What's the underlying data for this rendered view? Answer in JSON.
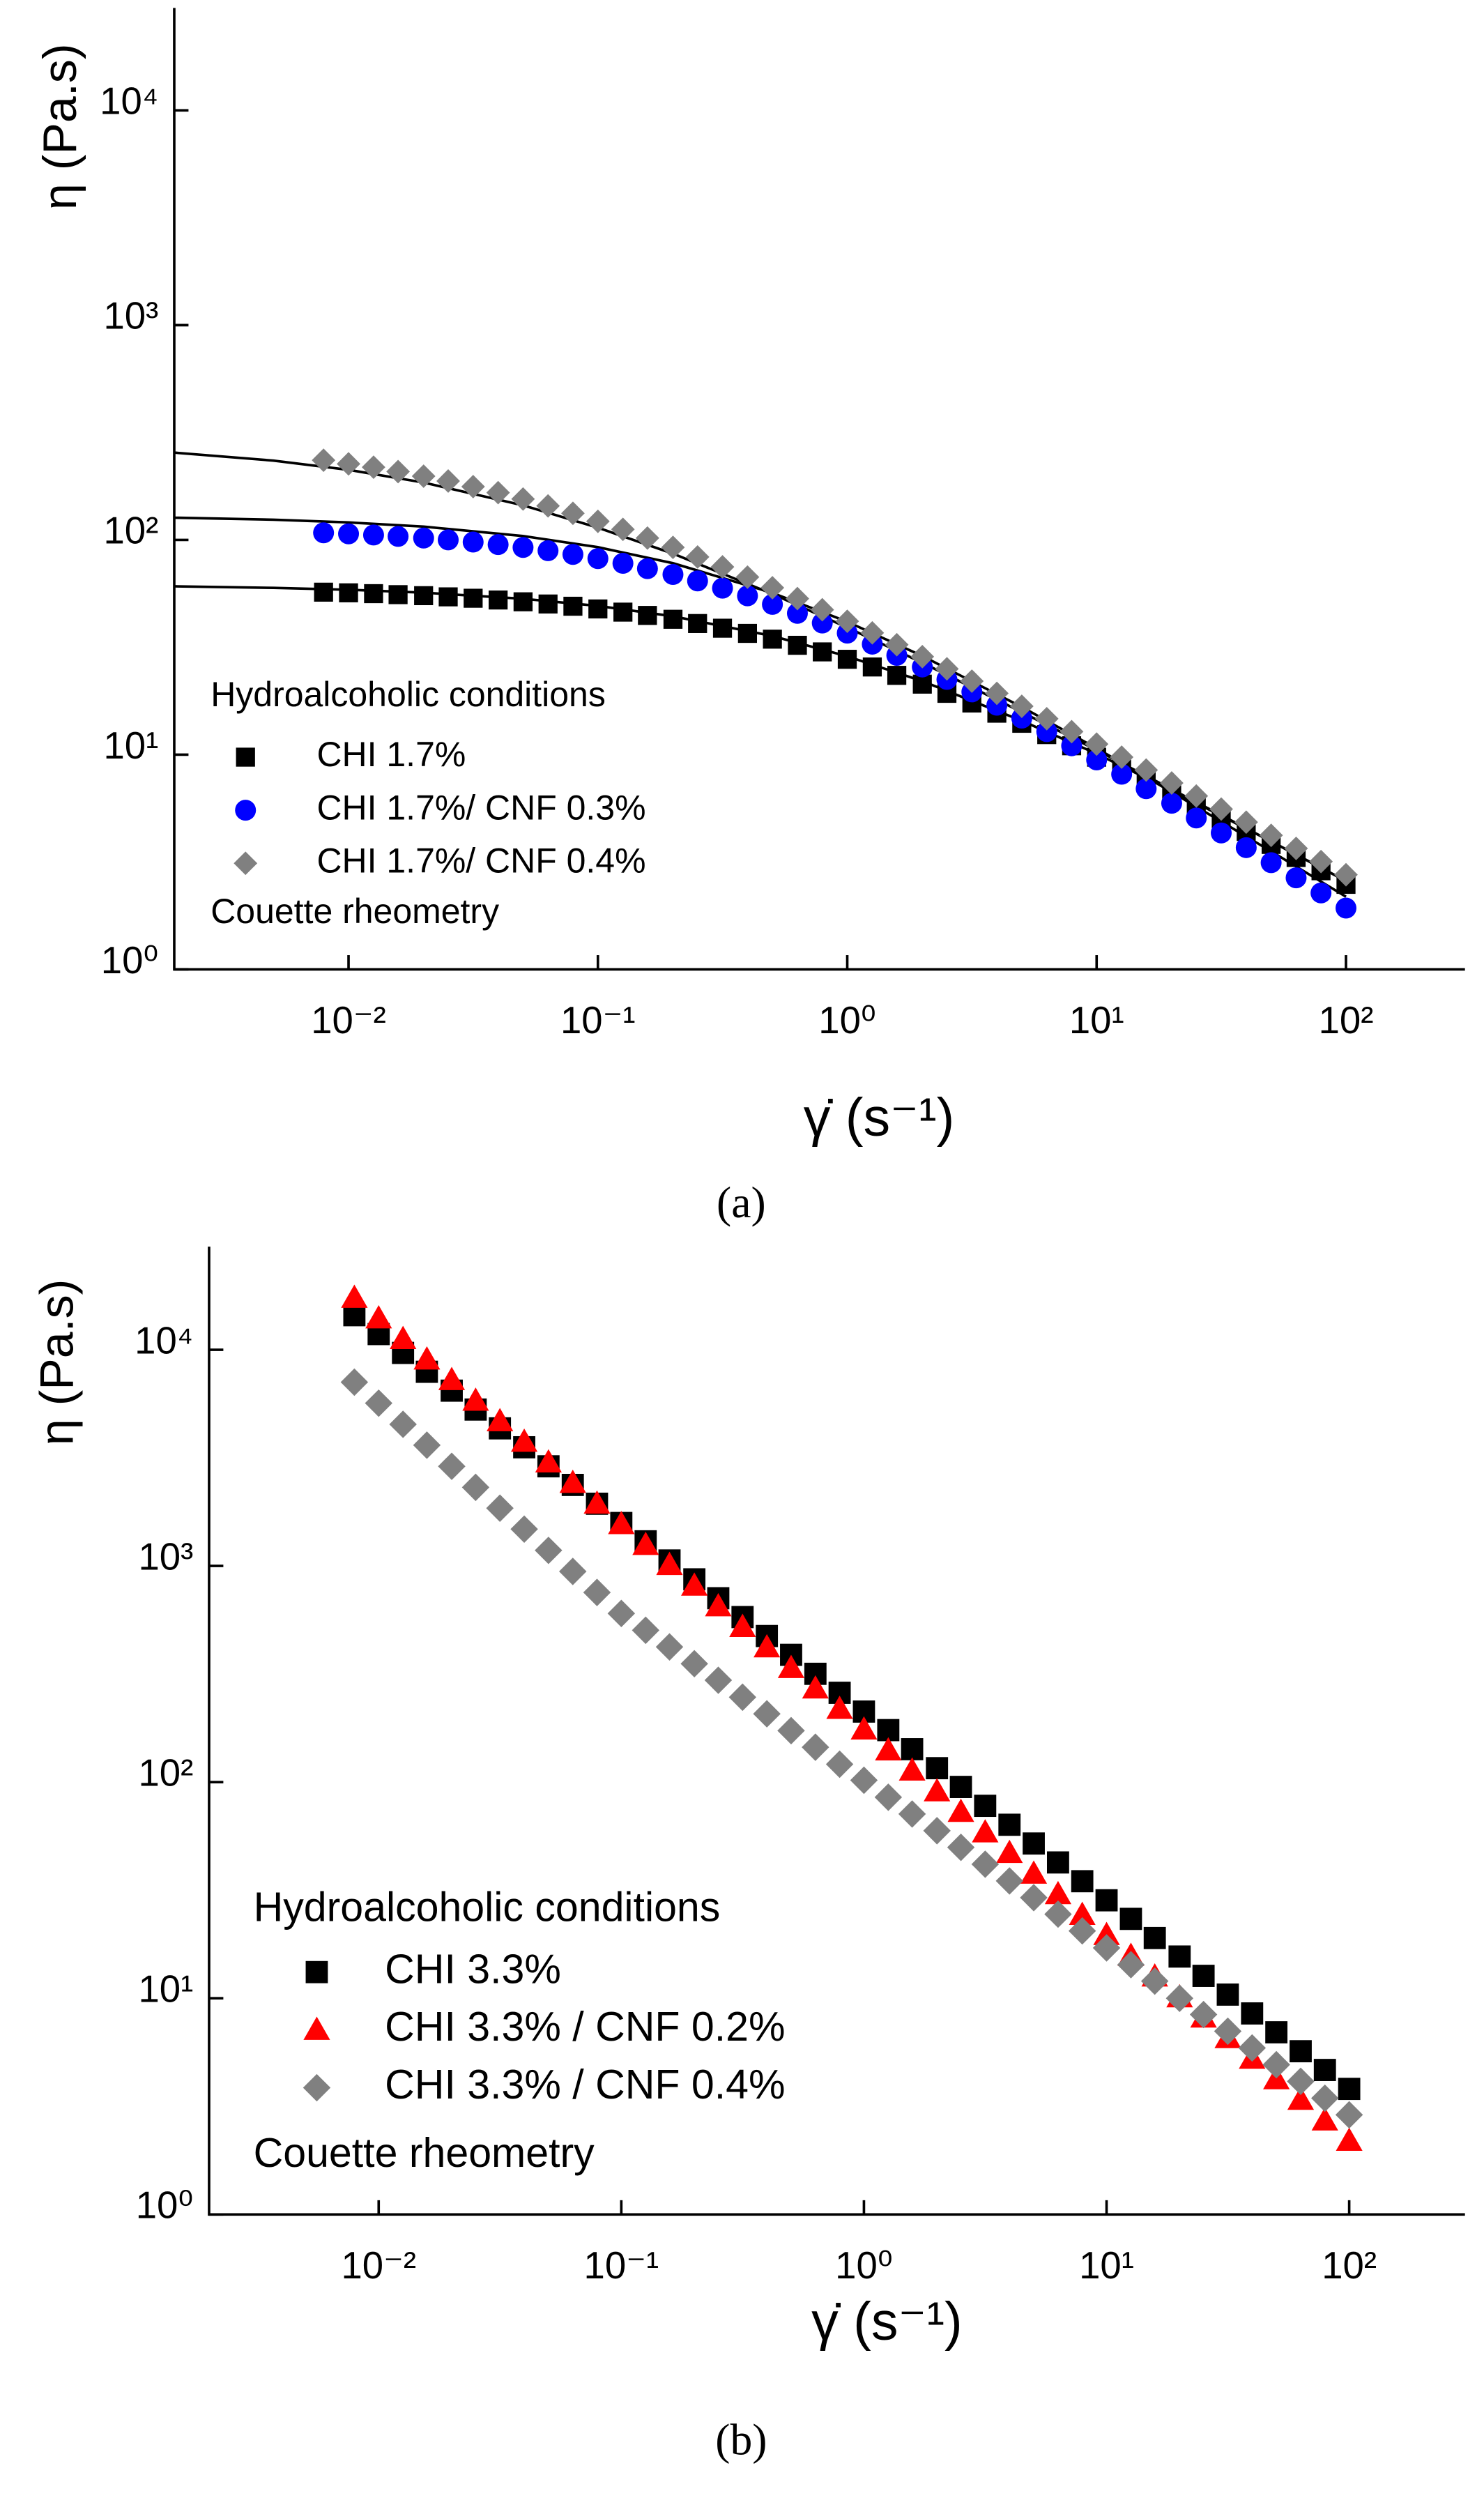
{
  "chart_data": [
    {
      "type": "scatter",
      "caption": "(a)",
      "ylabel": "η (Pa.s)",
      "xlabel": "γ̇ (s⁻¹)",
      "log_x": true,
      "log_y": true,
      "legend": "lower left",
      "legend_title": "Hydroalcoholic conditions",
      "note": "Couette rheometry",
      "xlim": [
        0.002,
        300
      ],
      "ylim": [
        1,
        30000
      ],
      "xticks": [
        {
          "value": 0.01,
          "label": "10⁻²"
        },
        {
          "value": 0.1,
          "label": "10⁻¹"
        },
        {
          "value": 1,
          "label": "10⁰"
        },
        {
          "value": 10,
          "label": "10¹"
        },
        {
          "value": 100,
          "label": "10²"
        }
      ],
      "yticks": [
        {
          "value": 1,
          "label": "10⁰"
        },
        {
          "value": 10,
          "label": "10¹"
        },
        {
          "value": 100,
          "label": "10²"
        },
        {
          "value": 1000,
          "label": "10³"
        },
        {
          "value": 10000,
          "label": "10⁴"
        }
      ],
      "x": [
        0.00794,
        0.01,
        0.0126,
        0.0158,
        0.02,
        0.0251,
        0.0316,
        0.0398,
        0.0501,
        0.0631,
        0.0794,
        0.1,
        0.126,
        0.158,
        0.2,
        0.251,
        0.316,
        0.398,
        0.501,
        0.631,
        0.794,
        1,
        1.26,
        1.58,
        2,
        2.51,
        3.16,
        3.98,
        5.01,
        6.31,
        7.94,
        10,
        12.6,
        15.8,
        20,
        25.1,
        31.6,
        39.8,
        50.1,
        63.1,
        79.4,
        100
      ],
      "series": [
        {
          "name": "CHI 1.7%",
          "color": "#000000",
          "marker": "square",
          "values": [
            57.1,
            56.7,
            56.2,
            55.6,
            55.0,
            54.3,
            53.5,
            52.5,
            51.5,
            50.3,
            49.1,
            47.7,
            46.1,
            44.5,
            42.7,
            40.8,
            38.8,
            36.7,
            34.5,
            32.3,
            30.1,
            27.8,
            25.6,
            23.4,
            21.3,
            19.3,
            17.4,
            15.6,
            14.0,
            12.4,
            11.0,
            9.73,
            8.57,
            7.53,
            6.6,
            5.77,
            5.04,
            4.39,
            3.82,
            3.32,
            2.88,
            2.49
          ]
        },
        {
          "name": "CHI 1.7%/ CNF 0.3%",
          "color": "#0000ff",
          "marker": "circle",
          "values": [
            107.9,
            106.7,
            105.4,
            103.8,
            102.0,
            100.0,
            97.7,
            95.1,
            92.2,
            89.1,
            85.6,
            81.8,
            77.8,
            73.5,
            69.0,
            64.4,
            59.6,
            54.9,
            50.1,
            45.5,
            41.0,
            36.8,
            32.7,
            29.0,
            25.6,
            22.4,
            19.6,
            17.0,
            14.8,
            12.8,
            11.0,
            9.45,
            8.11,
            6.94,
            5.94,
            5.07,
            4.32,
            3.69,
            3.14,
            2.67,
            2.27,
            1.93
          ]
        },
        {
          "name": "CHI 1.7%/ CNF 0.4%",
          "color": "#808080",
          "marker": "diamond",
          "values": [
            235,
            226,
            218,
            208,
            198,
            188,
            177,
            166,
            155,
            144,
            133,
            122,
            112,
            102,
            92.3,
            83.3,
            74.9,
            67.1,
            59.9,
            53.3,
            47.3,
            41.8,
            36.9,
            32.5,
            28.6,
            25.1,
            22.0,
            19.3,
            16.8,
            14.7,
            12.8,
            11.2,
            9.74,
            8.48,
            7.38,
            6.42,
            5.58,
            4.85,
            4.21,
            3.66,
            3.18,
            2.76
          ]
        }
      ],
      "lines": [
        {
          "color": "#000000",
          "x": [
            0.002,
            0.005,
            0.01,
            0.02,
            0.05,
            0.1,
            0.2,
            0.5,
            1,
            2,
            5,
            10,
            20,
            50,
            100
          ],
          "values": [
            60.8,
            59.8,
            58.6,
            56.8,
            53.2,
            49.3,
            44.1,
            35.7,
            28.7,
            22.0,
            14.4,
            10.1,
            6.81,
            3.95,
            2.58
          ]
        },
        {
          "color": "#000000",
          "x": [
            0.002,
            0.005,
            0.01,
            0.02,
            0.05,
            0.1,
            0.2,
            0.5,
            1,
            2,
            5,
            10,
            20,
            50,
            100
          ],
          "values": [
            126.9,
            124.2,
            120.6,
            115.3,
            104.3,
            92.5,
            77.9,
            56.7,
            41.6,
            28.8,
            16.7,
            10.7,
            6.7,
            3.55,
            2.18
          ]
        },
        {
          "color": "#000000",
          "x": [
            0.002,
            0.005,
            0.01,
            0.02,
            0.05,
            0.1,
            0.2,
            0.5,
            1,
            2,
            5,
            10,
            20,
            50,
            100
          ],
          "values": [
            255,
            234,
            212,
            185,
            145,
            114,
            86.3,
            56.1,
            39.1,
            26.8,
            15.8,
            10.5,
            6.9,
            3.95,
            2.58
          ]
        }
      ]
    },
    {
      "type": "scatter",
      "caption": "(b)",
      "ylabel": "η (Pa.s)",
      "xlabel": "γ̇ (s⁻¹)",
      "log_x": true,
      "log_y": true,
      "legend": "lower left",
      "legend_title": "Hydroalcoholic conditions",
      "note": "Couette rheometry",
      "xlim": [
        0.002,
        300
      ],
      "ylim": [
        1,
        30000
      ],
      "xticks": [
        {
          "value": 0.01,
          "label": "10⁻²"
        },
        {
          "value": 0.1,
          "label": "10⁻¹"
        },
        {
          "value": 1,
          "label": "10⁰"
        },
        {
          "value": 10,
          "label": "10¹"
        },
        {
          "value": 100,
          "label": "10²"
        }
      ],
      "yticks": [
        {
          "value": 1,
          "label": "10⁰"
        },
        {
          "value": 10,
          "label": "10¹"
        },
        {
          "value": 100,
          "label": "10²"
        },
        {
          "value": 1000,
          "label": "10³"
        },
        {
          "value": 10000,
          "label": "10⁴"
        }
      ],
      "x": [
        0.00794,
        0.01,
        0.0126,
        0.0158,
        0.02,
        0.0251,
        0.0316,
        0.0398,
        0.0501,
        0.0631,
        0.0794,
        0.1,
        0.126,
        0.158,
        0.2,
        0.251,
        0.316,
        0.398,
        0.501,
        0.631,
        0.794,
        1,
        1.26,
        1.58,
        2,
        2.51,
        3.16,
        3.98,
        5.01,
        6.31,
        7.94,
        10,
        12.6,
        15.8,
        20,
        25.1,
        31.6,
        39.8,
        50.1,
        63.1,
        79.4,
        100
      ],
      "series": [
        {
          "name": "CHI 3.3%",
          "color": "#000000",
          "marker": "square",
          "values": [
            14450,
            11820,
            9670,
            7910,
            6470,
            5290,
            4330,
            3540,
            2890,
            2370,
            1940,
            1580,
            1300,
            1060,
            867,
            709,
            580,
            474,
            388,
            317,
            259,
            212,
            174,
            142,
            116,
            95,
            77.7,
            63.5,
            52,
            42.5,
            34.8,
            28.4,
            23.3,
            19,
            15.6,
            12.7,
            10.4,
            8.51,
            6.96,
            5.69,
            4.66,
            3.81
          ]
        },
        {
          "name": "CHI 3.3% / CNF 0.2%",
          "color": "#ff0000",
          "marker": "triangle",
          "values": [
            17380,
            13960,
            11210,
            9010,
            7240,
            5810,
            4670,
            3750,
            3010,
            2420,
            1940,
            1560,
            1250,
            1010,
            810,
            650,
            522,
            420,
            337,
            271,
            218,
            175,
            140,
            113,
            90.6,
            72.8,
            58.5,
            47,
            37.7,
            30.3,
            24.3,
            19.6,
            15.7,
            12.6,
            10.1,
            8.14,
            6.54,
            5.25,
            4.22,
            3.39,
            2.72,
            2.19
          ]
        },
        {
          "name": "CHI 3.3% / CNF 0.4%",
          "color": "#808080",
          "marker": "diamond",
          "values": [
            7080,
            5660,
            4520,
            3620,
            2890,
            2310,
            1850,
            1480,
            1180,
            943,
            754,
            603,
            504,
            422,
            353,
            296,
            247,
            207,
            173,
            145,
            121,
            102,
            85.1,
            71.2,
            59.6,
            49.9,
            41.7,
            34.9,
            29.2,
            24.5,
            20.5,
            17.1,
            14.3,
            12,
            10,
            8.41,
            7.04,
            5.89,
            4.93,
            4.13,
            3.45,
            2.89
          ]
        }
      ]
    }
  ]
}
